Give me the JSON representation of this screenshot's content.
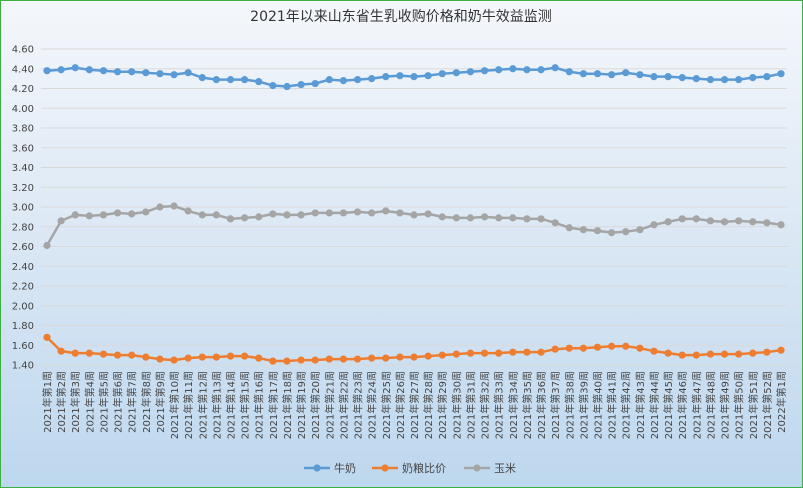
{
  "chart_data": {
    "type": "line",
    "title": "2021年以来山东省生乳收购价格和奶牛效益监测",
    "xlabel": "",
    "ylabel": "",
    "ylim": [
      1.4,
      4.6
    ],
    "ystep": 0.2,
    "grid": true,
    "legend_position": "bottom",
    "categories": [
      "2021年第1周",
      "2021年第2周",
      "2021年第3周",
      "2021年第4周",
      "2021年第5周",
      "2021年第6周",
      "2021年第7周",
      "2021年第8周",
      "2021年第9周",
      "2021年第10周",
      "2021年第11周",
      "2021年第12周",
      "2021年第13周",
      "2021年第14周",
      "2021年第15周",
      "2021年第16周",
      "2021年第17周",
      "2021年第18周",
      "2021年第19周",
      "2021年第20周",
      "2021年第21周",
      "2021年第22周",
      "2021年第23周",
      "2021年第24周",
      "2021年第25周",
      "2021年第26周",
      "2021年第27周",
      "2021年第28周",
      "2021年第29周",
      "2021年第30周",
      "2021年第31周",
      "2021年第32周",
      "2021年第33周",
      "2021年第34周",
      "2021年第35周",
      "2021年第36周",
      "2021年第37周",
      "2021年第38周",
      "2021年第39周",
      "2021年第40周",
      "2021年第41周",
      "2021年第42周",
      "2021年第43周",
      "2021年第44周",
      "2021年第45周",
      "2021年第46周",
      "2021年第47周",
      "2021年第48周",
      "2021年第49周",
      "2021年第50周",
      "2021年第51周",
      "2021年第52周",
      "2022年第1周"
    ],
    "series": [
      {
        "name": "牛奶",
        "color": "#5b9bd5",
        "values": [
          4.38,
          4.39,
          4.41,
          4.39,
          4.38,
          4.37,
          4.37,
          4.36,
          4.35,
          4.34,
          4.36,
          4.31,
          4.29,
          4.29,
          4.29,
          4.27,
          4.23,
          4.22,
          4.24,
          4.25,
          4.29,
          4.28,
          4.29,
          4.3,
          4.32,
          4.33,
          4.32,
          4.33,
          4.35,
          4.36,
          4.37,
          4.38,
          4.39,
          4.4,
          4.39,
          4.39,
          4.41,
          4.37,
          4.35,
          4.35,
          4.34,
          4.36,
          4.34,
          4.32,
          4.32,
          4.31,
          4.3,
          4.29,
          4.29,
          4.29,
          4.31,
          4.32,
          4.35
        ]
      },
      {
        "name": "奶粮比价",
        "color": "#ed7d31",
        "values": [
          1.68,
          1.54,
          1.52,
          1.52,
          1.51,
          1.5,
          1.5,
          1.48,
          1.46,
          1.45,
          1.47,
          1.48,
          1.48,
          1.49,
          1.49,
          1.47,
          1.44,
          1.44,
          1.45,
          1.45,
          1.46,
          1.46,
          1.46,
          1.47,
          1.47,
          1.48,
          1.48,
          1.49,
          1.5,
          1.51,
          1.52,
          1.52,
          1.52,
          1.53,
          1.53,
          1.53,
          1.56,
          1.57,
          1.57,
          1.58,
          1.59,
          1.59,
          1.57,
          1.54,
          1.52,
          1.5,
          1.5,
          1.51,
          1.51,
          1.51,
          1.52,
          1.53,
          1.55
        ]
      },
      {
        "name": "玉米",
        "color": "#a5a5a5",
        "values": [
          2.61,
          2.86,
          2.92,
          2.91,
          2.92,
          2.94,
          2.93,
          2.95,
          3.0,
          3.01,
          2.96,
          2.92,
          2.92,
          2.88,
          2.89,
          2.9,
          2.93,
          2.92,
          2.92,
          2.94,
          2.94,
          2.94,
          2.95,
          2.94,
          2.96,
          2.94,
          2.92,
          2.93,
          2.9,
          2.89,
          2.89,
          2.9,
          2.89,
          2.89,
          2.88,
          2.88,
          2.84,
          2.79,
          2.77,
          2.76,
          2.74,
          2.75,
          2.77,
          2.82,
          2.85,
          2.88,
          2.88,
          2.86,
          2.85,
          2.86,
          2.85,
          2.84,
          2.82
        ]
      }
    ]
  }
}
